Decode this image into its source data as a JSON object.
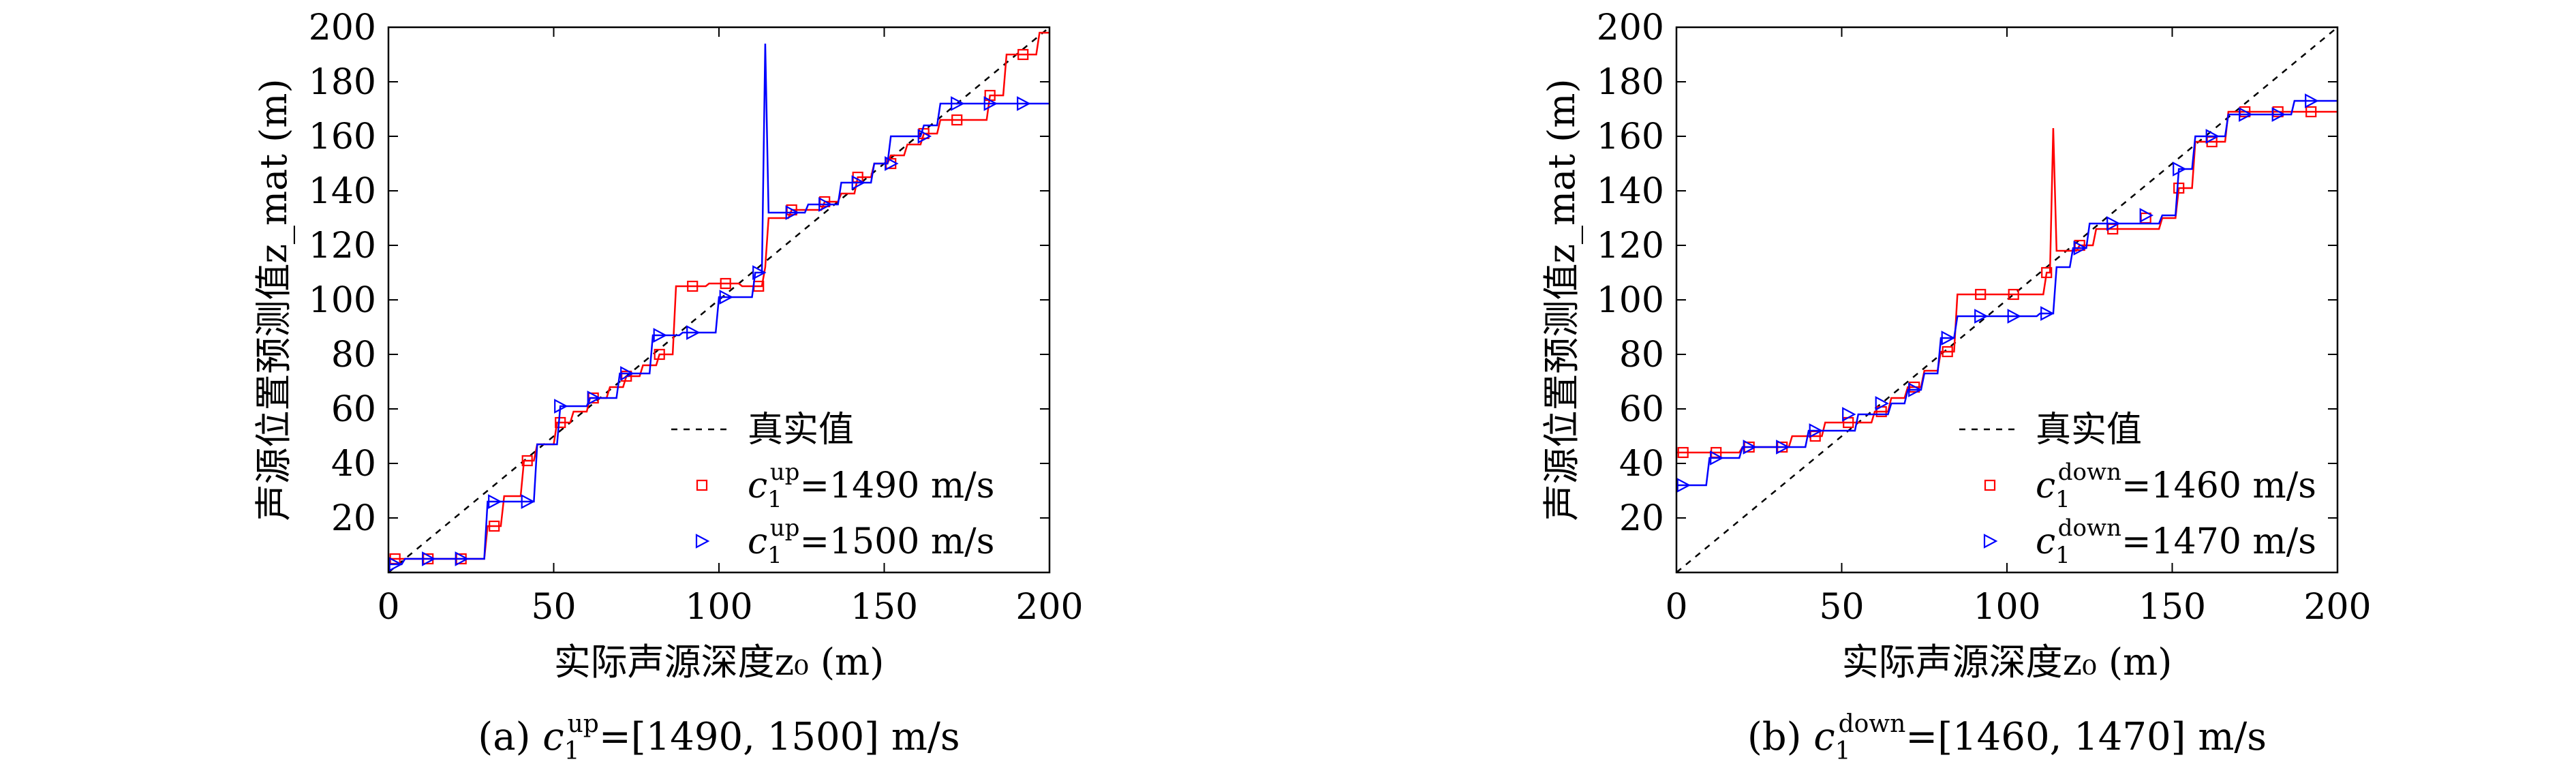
{
  "chart_data": [
    {
      "type": "line",
      "panel": "a",
      "caption_prefix": "(a) ",
      "caption_var": "c",
      "caption_sub": "1",
      "caption_sup": "up",
      "caption_rest": "=[1490, 1500] m/s",
      "xlabel": "实际声源深度z₀ (m)",
      "ylabel": "声源位置预测值z_mat (m)",
      "xlim": [
        0,
        200
      ],
      "ylim": [
        0,
        200
      ],
      "xticks": [
        0,
        50,
        100,
        150,
        200
      ],
      "yticks": [
        20,
        40,
        60,
        80,
        100,
        120,
        140,
        160,
        180,
        200
      ],
      "legend_position": "bottom-right",
      "reference": {
        "name": "真实值",
        "x": [
          0,
          200
        ],
        "y": [
          0,
          200
        ],
        "color": "#000000",
        "style": "dashed"
      },
      "series": [
        {
          "label_var": "c",
          "label_sub": "1",
          "label_sup": "up",
          "label_rest": "=1490 m/s",
          "color": "#ff0000",
          "marker": "square",
          "x": [
            0,
            4,
            5,
            14,
            15,
            24,
            25,
            29,
            30,
            34,
            35,
            40,
            41,
            44,
            45,
            50,
            51,
            55,
            56,
            60,
            61,
            66,
            67,
            71,
            72,
            76,
            77,
            81,
            82,
            86,
            87,
            96,
            97,
            106,
            107,
            113,
            114,
            115,
            116,
            121,
            122,
            131,
            132,
            136,
            137,
            141,
            142,
            146,
            147,
            151,
            152,
            156,
            157,
            161,
            162,
            166,
            167,
            176,
            177,
            181,
            182,
            186,
            187,
            196,
            197,
            200
          ],
          "y": [
            5,
            5,
            5,
            5,
            5,
            5,
            5,
            5,
            17,
            17,
            28,
            28,
            41,
            41,
            47,
            47,
            55,
            55,
            59,
            59,
            64,
            64,
            68,
            68,
            72,
            72,
            76,
            76,
            80,
            80,
            105,
            105,
            106,
            106,
            105,
            105,
            112,
            130,
            130,
            130,
            133,
            133,
            136,
            136,
            139,
            139,
            145,
            145,
            150,
            150,
            153,
            153,
            157,
            157,
            161,
            161,
            166,
            166,
            166,
            166,
            175,
            175,
            190,
            190,
            198,
            198
          ],
          "marker_x": [
            2,
            12,
            22,
            32,
            42,
            52,
            62,
            72,
            82,
            92,
            102,
            112,
            122,
            132,
            142,
            152,
            162,
            172,
            182,
            192
          ],
          "marker_y": [
            5,
            5,
            5,
            17,
            41,
            55,
            64,
            72,
            80,
            105,
            106,
            105,
            133,
            136,
            145,
            150,
            161,
            166,
            175,
            190
          ]
        },
        {
          "label_var": "c",
          "label_sub": "1",
          "label_sup": "up",
          "label_rest": "=1500 m/s",
          "color": "#0000ff",
          "marker": "triangle-right",
          "x": [
            0,
            4,
            5,
            29,
            30,
            44,
            45,
            51,
            52,
            60,
            61,
            69,
            70,
            79,
            80,
            88,
            89,
            99,
            100,
            110,
            111,
            113,
            114,
            115,
            116,
            121,
            122,
            126,
            127,
            136,
            137,
            146,
            147,
            151,
            152,
            161,
            162,
            166,
            167,
            176,
            177,
            200
          ],
          "y": [
            3,
            3,
            5,
            5,
            26,
            26,
            47,
            47,
            61,
            61,
            64,
            64,
            73,
            73,
            87,
            87,
            88,
            88,
            101,
            101,
            110,
            110,
            194,
            132,
            132,
            132,
            132,
            132,
            135,
            135,
            143,
            143,
            150,
            150,
            160,
            160,
            164,
            164,
            172,
            172,
            172,
            172
          ],
          "marker_x": [
            2,
            12,
            22,
            32,
            42,
            52,
            62,
            72,
            82,
            92,
            102,
            112,
            122,
            132,
            142,
            152,
            162,
            172,
            182,
            192
          ],
          "marker_y": [
            3,
            5,
            5,
            26,
            26,
            61,
            64,
            73,
            87,
            88,
            101,
            110,
            132,
            135,
            143,
            150,
            160,
            172,
            172,
            172
          ]
        }
      ]
    },
    {
      "type": "line",
      "panel": "b",
      "caption_prefix": "(b) ",
      "caption_var": "c",
      "caption_sub": "1",
      "caption_sup": "down",
      "caption_rest": "=[1460, 1470] m/s",
      "xlabel": "实际声源深度z₀ (m)",
      "ylabel": "声源位置预测值z_mat (m)",
      "xlim": [
        0,
        200
      ],
      "ylim": [
        0,
        200
      ],
      "xticks": [
        0,
        50,
        100,
        150,
        200
      ],
      "yticks": [
        20,
        40,
        60,
        80,
        100,
        120,
        140,
        160,
        180,
        200
      ],
      "legend_position": "bottom-right",
      "reference": {
        "name": "真实值",
        "x": [
          0,
          200
        ],
        "y": [
          0,
          200
        ],
        "color": "#000000",
        "style": "dashed"
      },
      "series": [
        {
          "label_var": "c",
          "label_sub": "1",
          "label_sup": "down",
          "label_rest": "=1460 m/s",
          "color": "#ff0000",
          "marker": "square",
          "x": [
            0,
            19,
            20,
            34,
            35,
            44,
            45,
            59,
            60,
            64,
            65,
            69,
            70,
            74,
            75,
            79,
            80,
            84,
            85,
            111,
            112,
            113,
            114,
            115,
            116,
            121,
            122,
            126,
            127,
            146,
            147,
            151,
            152,
            156,
            157,
            166,
            167,
            200
          ],
          "y": [
            44,
            44,
            46,
            46,
            50,
            50,
            55,
            55,
            59,
            59,
            64,
            64,
            68,
            68,
            74,
            74,
            81,
            81,
            102,
            102,
            110,
            110,
            163,
            118,
            118,
            118,
            120,
            120,
            126,
            126,
            130,
            130,
            141,
            141,
            158,
            158,
            169,
            169
          ],
          "marker_x": [
            2,
            12,
            22,
            32,
            42,
            52,
            62,
            72,
            82,
            92,
            102,
            112,
            122,
            132,
            142,
            152,
            162,
            172,
            182,
            192
          ],
          "marker_y": [
            44,
            44,
            46,
            46,
            50,
            55,
            59,
            68,
            81,
            102,
            102,
            110,
            120,
            126,
            130,
            141,
            158,
            169,
            169,
            169
          ]
        },
        {
          "label_var": "c",
          "label_sub": "1",
          "label_sup": "down",
          "label_rest": "=1470 m/s",
          "color": "#0000ff",
          "marker": "triangle-right",
          "x": [
            0,
            9,
            10,
            19,
            20,
            39,
            40,
            54,
            55,
            64,
            65,
            69,
            70,
            74,
            75,
            79,
            80,
            84,
            85,
            89,
            90,
            109,
            110,
            114,
            115,
            119,
            120,
            124,
            125,
            146,
            147,
            151,
            152,
            156,
            157,
            166,
            167,
            186,
            187,
            200
          ],
          "y": [
            32,
            32,
            42,
            42,
            46,
            46,
            52,
            52,
            58,
            58,
            62,
            62,
            67,
            67,
            73,
            73,
            86,
            86,
            94,
            94,
            94,
            94,
            95,
            95,
            112,
            112,
            119,
            119,
            128,
            128,
            131,
            131,
            148,
            148,
            160,
            160,
            168,
            168,
            173,
            173
          ],
          "marker_x": [
            2,
            12,
            22,
            32,
            42,
            52,
            62,
            72,
            82,
            92,
            102,
            112,
            122,
            132,
            142,
            152,
            162,
            172,
            182,
            192
          ],
          "marker_y": [
            32,
            42,
            46,
            46,
            52,
            58,
            62,
            67,
            86,
            94,
            94,
            95,
            119,
            128,
            131,
            148,
            160,
            168,
            168,
            173
          ]
        }
      ]
    }
  ]
}
